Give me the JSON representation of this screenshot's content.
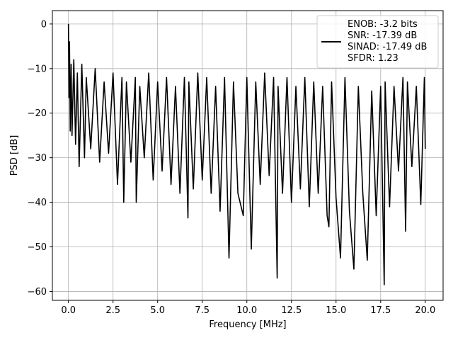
{
  "chart_data": {
    "type": "line",
    "title": "",
    "xlabel": "Frequency [MHz]",
    "ylabel": "PSD [dB]",
    "xlim": [
      -0.9,
      21.0
    ],
    "ylim": [
      -62.0,
      3.0
    ],
    "xticks": [
      0.0,
      2.5,
      5.0,
      7.5,
      10.0,
      12.5,
      15.0,
      17.5,
      20.0
    ],
    "xtick_labels": [
      "0.0",
      "2.5",
      "5.0",
      "7.5",
      "10.0",
      "12.5",
      "15.0",
      "17.5",
      "20.0"
    ],
    "yticks": [
      0,
      -10,
      -20,
      -30,
      -40,
      -50,
      -60
    ],
    "ytick_labels": [
      "0",
      "−10",
      "−20",
      "−30",
      "−40",
      "−50",
      "−60"
    ],
    "grid": true,
    "legend_position": "top-right",
    "legend_lines": [
      "ENOB: -3.2 bits",
      "SNR: -17.39 dB",
      "SINAD: -17.49 dB",
      "SFDR: 1.23"
    ],
    "series": [
      {
        "color": "#000000",
        "x": [
          0.0,
          0.03,
          0.06,
          0.1,
          0.15,
          0.2,
          0.3,
          0.4,
          0.5,
          0.6,
          0.75,
          0.9,
          1.0,
          1.25,
          1.5,
          1.75,
          2.0,
          2.25,
          2.5,
          2.75,
          3.0,
          3.1,
          3.25,
          3.5,
          3.75,
          3.8,
          4.0,
          4.25,
          4.5,
          4.75,
          5.0,
          5.25,
          5.5,
          5.75,
          6.0,
          6.25,
          6.5,
          6.7,
          6.75,
          7.0,
          7.25,
          7.5,
          7.75,
          8.0,
          8.25,
          8.5,
          8.75,
          9.0,
          9.25,
          9.5,
          9.8,
          10.0,
          10.25,
          10.5,
          10.75,
          11.0,
          11.25,
          11.5,
          11.7,
          11.75,
          12.0,
          12.25,
          12.5,
          12.75,
          13.0,
          13.25,
          13.5,
          13.75,
          14.0,
          14.25,
          14.5,
          14.6,
          14.75,
          15.0,
          15.25,
          15.5,
          15.75,
          16.0,
          16.25,
          16.5,
          16.75,
          17.0,
          17.25,
          17.5,
          17.7,
          17.75,
          18.0,
          18.25,
          18.5,
          18.75,
          18.9,
          19.0,
          19.25,
          19.5,
          19.75,
          19.95,
          20.0
        ],
        "values": [
          0.0,
          -16.5,
          -4.0,
          -24.0,
          -9.0,
          -25.0,
          -8.0,
          -27.0,
          -11.0,
          -32.0,
          -9.0,
          -30.0,
          -12.0,
          -28.0,
          -10.0,
          -31.0,
          -13.0,
          -29.0,
          -11.0,
          -36.0,
          -12.0,
          -40.0,
          -13.0,
          -31.0,
          -12.0,
          -40.0,
          -14.0,
          -30.0,
          -11.0,
          -35.0,
          -13.0,
          -33.0,
          -12.0,
          -36.0,
          -14.0,
          -38.0,
          -12.0,
          -43.5,
          -13.0,
          -37.0,
          -11.0,
          -35.0,
          -12.0,
          -38.0,
          -14.0,
          -42.0,
          -12.0,
          -52.5,
          -13.0,
          -38.0,
          -43.0,
          -12.0,
          -50.5,
          -13.0,
          -36.0,
          -11.0,
          -34.0,
          -12.0,
          -57.0,
          -14.0,
          -38.0,
          -12.0,
          -40.0,
          -14.0,
          -37.0,
          -12.0,
          -41.0,
          -13.0,
          -38.0,
          -14.0,
          -43.0,
          -45.5,
          -13.0,
          -39.0,
          -52.5,
          -12.0,
          -42.0,
          -55.0,
          -14.0,
          -38.0,
          -53.0,
          -15.0,
          -43.0,
          -14.0,
          -58.5,
          -13.0,
          -41.0,
          -14.0,
          -33.0,
          -12.0,
          -46.5,
          -13.0,
          -32.0,
          -14.0,
          -40.5,
          -12.0,
          -28.0
        ]
      }
    ]
  }
}
